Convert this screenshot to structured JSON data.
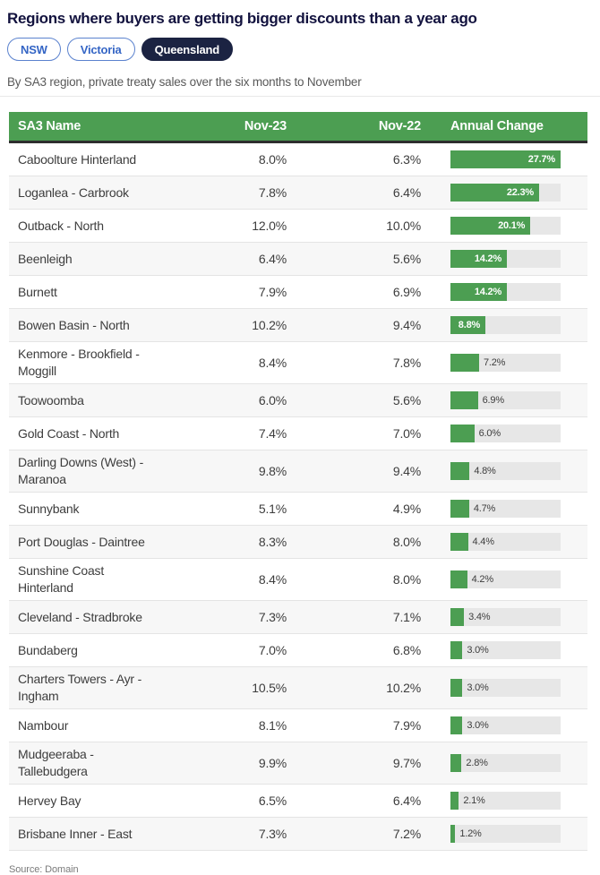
{
  "title": "Regions where buyers are getting bigger discounts than a year ago",
  "tabs": [
    {
      "label": "NSW",
      "active": false
    },
    {
      "label": "Victoria",
      "active": false
    },
    {
      "label": "Queensland",
      "active": true
    }
  ],
  "subtitle": "By SA3 region, private treaty sales over the six months to November",
  "table": {
    "columns": [
      "SA3 Name",
      "Nov-23",
      "Nov-22",
      "Annual Change"
    ],
    "bar_max": 27.7,
    "rows": [
      {
        "name": "Caboolture Hinterland",
        "nov23": "8.0%",
        "nov22": "6.3%",
        "change": 27.7,
        "change_label": "27.7%"
      },
      {
        "name": "Loganlea - Carbrook",
        "nov23": "7.8%",
        "nov22": "6.4%",
        "change": 22.3,
        "change_label": "22.3%"
      },
      {
        "name": "Outback - North",
        "nov23": "12.0%",
        "nov22": "10.0%",
        "change": 20.1,
        "change_label": "20.1%"
      },
      {
        "name": "Beenleigh",
        "nov23": "6.4%",
        "nov22": "5.6%",
        "change": 14.2,
        "change_label": "14.2%"
      },
      {
        "name": "Burnett",
        "nov23": "7.9%",
        "nov22": "6.9%",
        "change": 14.2,
        "change_label": "14.2%"
      },
      {
        "name": "Bowen Basin - North",
        "nov23": "10.2%",
        "nov22": "9.4%",
        "change": 8.8,
        "change_label": "8.8%"
      },
      {
        "name": "Kenmore - Brookfield - Moggill",
        "nov23": "8.4%",
        "nov22": "7.8%",
        "change": 7.2,
        "change_label": "7.2%"
      },
      {
        "name": "Toowoomba",
        "nov23": "6.0%",
        "nov22": "5.6%",
        "change": 6.9,
        "change_label": "6.9%"
      },
      {
        "name": "Gold Coast - North",
        "nov23": "7.4%",
        "nov22": "7.0%",
        "change": 6.0,
        "change_label": "6.0%"
      },
      {
        "name": "Darling Downs (West) - Maranoa",
        "nov23": "9.8%",
        "nov22": "9.4%",
        "change": 4.8,
        "change_label": "4.8%"
      },
      {
        "name": "Sunnybank",
        "nov23": "5.1%",
        "nov22": "4.9%",
        "change": 4.7,
        "change_label": "4.7%"
      },
      {
        "name": "Port Douglas - Daintree",
        "nov23": "8.3%",
        "nov22": "8.0%",
        "change": 4.4,
        "change_label": "4.4%"
      },
      {
        "name": "Sunshine Coast Hinterland",
        "nov23": "8.4%",
        "nov22": "8.0%",
        "change": 4.2,
        "change_label": "4.2%"
      },
      {
        "name": "Cleveland - Stradbroke",
        "nov23": "7.3%",
        "nov22": "7.1%",
        "change": 3.4,
        "change_label": "3.4%"
      },
      {
        "name": "Bundaberg",
        "nov23": "7.0%",
        "nov22": "6.8%",
        "change": 3.0,
        "change_label": "3.0%"
      },
      {
        "name": "Charters Towers - Ayr - Ingham",
        "nov23": "10.5%",
        "nov22": "10.2%",
        "change": 3.0,
        "change_label": "3.0%"
      },
      {
        "name": "Nambour",
        "nov23": "8.1%",
        "nov22": "7.9%",
        "change": 3.0,
        "change_label": "3.0%"
      },
      {
        "name": "Mudgeeraba - Tallebudgera",
        "nov23": "9.9%",
        "nov22": "9.7%",
        "change": 2.8,
        "change_label": "2.8%"
      },
      {
        "name": "Hervey Bay",
        "nov23": "6.5%",
        "nov22": "6.4%",
        "change": 2.1,
        "change_label": "2.1%"
      },
      {
        "name": "Brisbane Inner - East",
        "nov23": "7.3%",
        "nov22": "7.2%",
        "change": 1.2,
        "change_label": "1.2%"
      }
    ]
  },
  "source": "Source: Domain",
  "colors": {
    "header_green": "#4c9e52",
    "bar_green": "#4c9e52",
    "bar_track": "#e7e7e7",
    "alt_row": "#f7f7f7",
    "title_navy": "#12123e",
    "tab_blue": "#3465c5",
    "active_tab_bg": "#1b2342",
    "header_rule": "#2e2e2e"
  },
  "chart_data": {
    "type": "table",
    "title": "Regions where buyers are getting bigger discounts than a year ago",
    "subtitle": "By SA3 region, private treaty sales over the six months to November",
    "selected_tab": "Queensland",
    "columns": [
      "SA3 Name",
      "Nov-23",
      "Nov-22",
      "Annual Change"
    ],
    "bar_column": "Annual Change",
    "bar_max": 27.7,
    "rows": [
      [
        "Caboolture Hinterland",
        8.0,
        6.3,
        27.7
      ],
      [
        "Loganlea - Carbrook",
        7.8,
        6.4,
        22.3
      ],
      [
        "Outback - North",
        12.0,
        10.0,
        20.1
      ],
      [
        "Beenleigh",
        6.4,
        5.6,
        14.2
      ],
      [
        "Burnett",
        7.9,
        6.9,
        14.2
      ],
      [
        "Bowen Basin - North",
        10.2,
        9.4,
        8.8
      ],
      [
        "Kenmore - Brookfield - Moggill",
        8.4,
        7.8,
        7.2
      ],
      [
        "Toowoomba",
        6.0,
        5.6,
        6.9
      ],
      [
        "Gold Coast - North",
        7.4,
        7.0,
        6.0
      ],
      [
        "Darling Downs (West) - Maranoa",
        9.8,
        9.4,
        4.8
      ],
      [
        "Sunnybank",
        5.1,
        4.9,
        4.7
      ],
      [
        "Port Douglas - Daintree",
        8.3,
        8.0,
        4.4
      ],
      [
        "Sunshine Coast Hinterland",
        8.4,
        8.0,
        4.2
      ],
      [
        "Cleveland - Stradbroke",
        7.3,
        7.1,
        3.4
      ],
      [
        "Bundaberg",
        7.0,
        6.8,
        3.0
      ],
      [
        "Charters Towers - Ayr - Ingham",
        10.5,
        10.2,
        3.0
      ],
      [
        "Nambour",
        8.1,
        7.9,
        3.0
      ],
      [
        "Mudgeeraba - Tallebudgera",
        9.9,
        9.7,
        2.8
      ],
      [
        "Hervey Bay",
        6.5,
        6.4,
        2.1
      ],
      [
        "Brisbane Inner - East",
        7.3,
        7.2,
        1.2
      ]
    ],
    "source": "Source: Domain"
  }
}
